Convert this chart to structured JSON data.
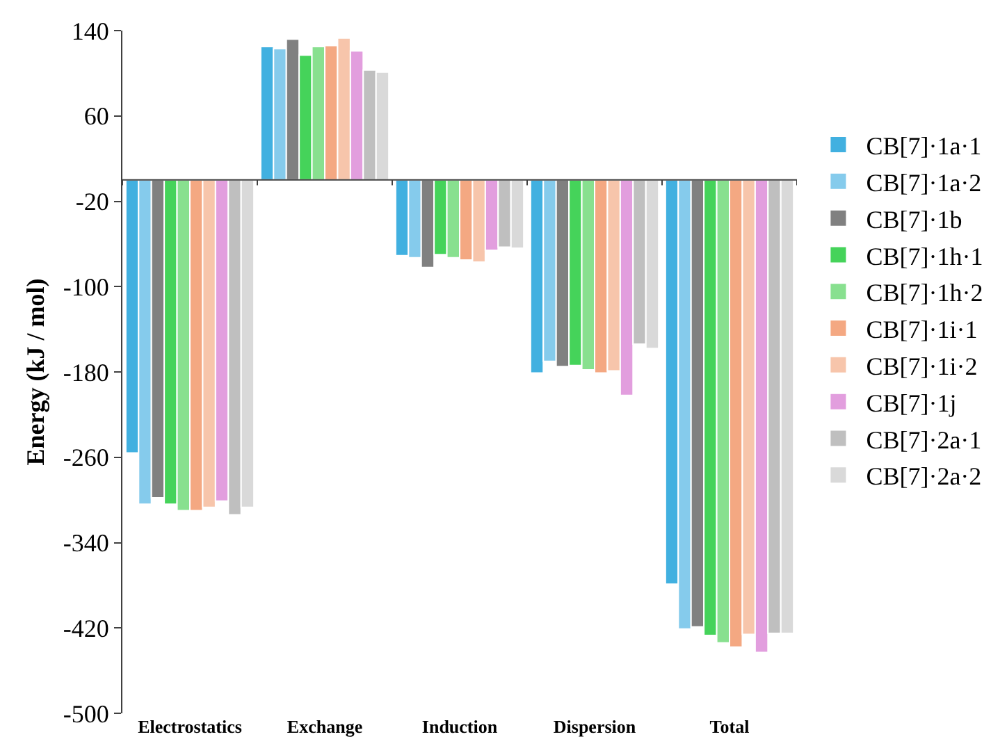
{
  "chart_data": {
    "type": "bar",
    "ylabel": "Energy (kJ / mol)",
    "categories": [
      "Electrostatics",
      "Exchange",
      "Induction",
      "Dispersion",
      "Total"
    ],
    "series": [
      {
        "name": "CB[7]·1a·1",
        "color": "#41b0e0",
        "values": [
          -256,
          125,
          -71,
          -181,
          -379
        ]
      },
      {
        "name": "CB[7]·1a·2",
        "color": "#85cbec",
        "values": [
          -304,
          123,
          -73,
          -170,
          -421
        ]
      },
      {
        "name": "CB[7]·1b",
        "color": "#808080",
        "values": [
          -298,
          132,
          -82,
          -175,
          -419
        ]
      },
      {
        "name": "CB[7]·1h·1",
        "color": "#45d35a",
        "values": [
          -304,
          117,
          -70,
          -174,
          -427
        ]
      },
      {
        "name": "CB[7]·1h·2",
        "color": "#88e08f",
        "values": [
          -310,
          125,
          -73,
          -178,
          -434
        ]
      },
      {
        "name": "CB[7]·1i·1",
        "color": "#f4a882",
        "values": [
          -310,
          126,
          -75,
          -181,
          -438
        ]
      },
      {
        "name": "CB[7]·1i·2",
        "color": "#f7c5ab",
        "values": [
          -307,
          133,
          -77,
          -179,
          -426
        ]
      },
      {
        "name": "CB[7]·1j",
        "color": "#e29ede",
        "values": [
          -301,
          121,
          -66,
          -202,
          -443
        ]
      },
      {
        "name": "CB[7]·2a·1",
        "color": "#bfbfbf",
        "values": [
          -314,
          103,
          -63,
          -154,
          -425
        ]
      },
      {
        "name": "CB[7]·2a·2",
        "color": "#d9d9d9",
        "values": [
          -307,
          101,
          -64,
          -158,
          -425
        ]
      }
    ],
    "ylim": [
      -500,
      140
    ],
    "yticks": [
      -500,
      -420,
      -340,
      -260,
      -180,
      -100,
      -20,
      60,
      140
    ],
    "legend": "right"
  }
}
